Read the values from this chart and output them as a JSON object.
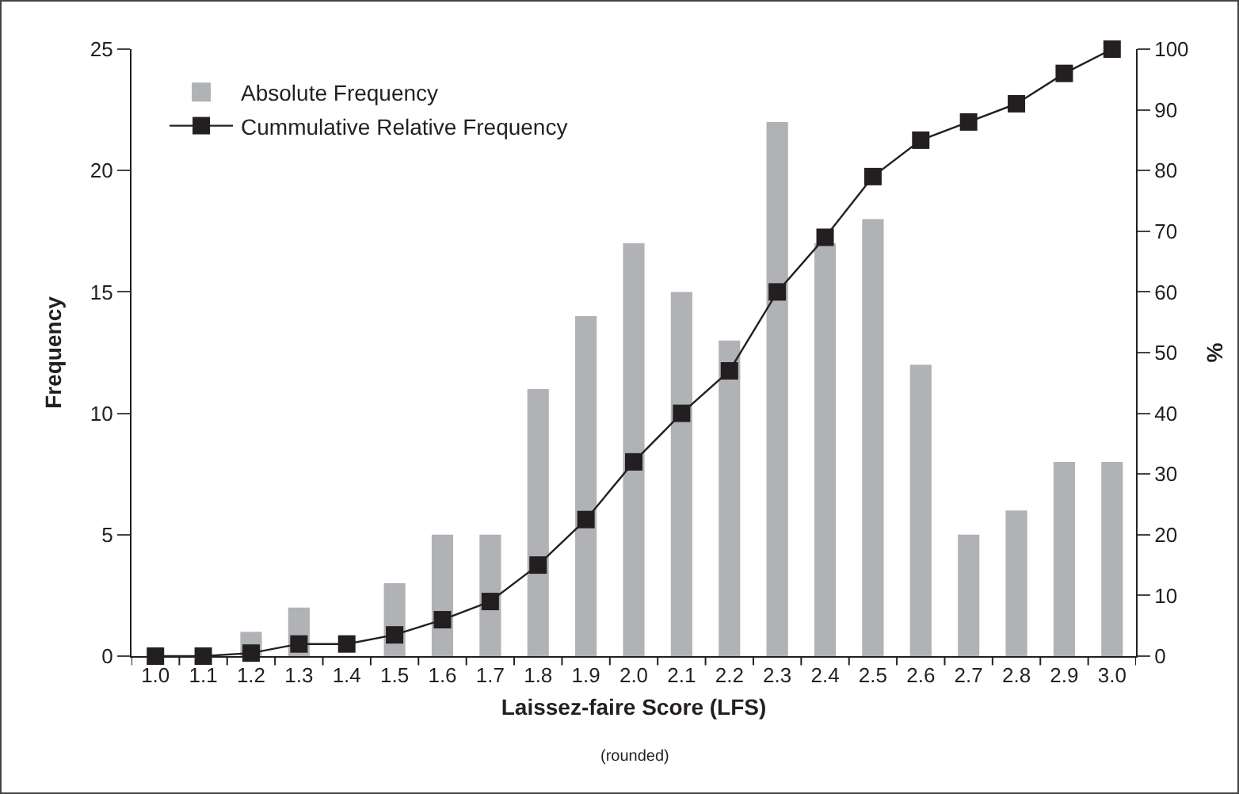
{
  "chart_data": {
    "type": "bar",
    "xlabel": "Laissez-faire Score (LFS)",
    "ylabel": "Frequency",
    "y2label": "%",
    "annotations": [
      "(rounded)"
    ],
    "categories": [
      "1.0",
      "1.1",
      "1.2",
      "1.3",
      "1.4",
      "1.5",
      "1.6",
      "1.7",
      "1.8",
      "1.9",
      "2.0",
      "2.1",
      "2.2",
      "2.3",
      "2.4",
      "2.5",
      "2.6",
      "2.7",
      "2.8",
      "2.9",
      "3.0"
    ],
    "series": [
      {
        "name": "Absolute Frequency",
        "type": "bar",
        "color": "#b1b2b6",
        "values": [
          0,
          0,
          1,
          2,
          0,
          3,
          5,
          5,
          11,
          14,
          17,
          15,
          13,
          22,
          17,
          18,
          12,
          5,
          6,
          8,
          8
        ]
      },
      {
        "name": "Cummulative Relative Frequency",
        "type": "line",
        "axis": "y2",
        "color": "#231f20",
        "marker": "square",
        "values": [
          0,
          0,
          0.5,
          2,
          2,
          3.5,
          6,
          9,
          15,
          22.5,
          32,
          40,
          47,
          60,
          69,
          79,
          85,
          88,
          91,
          96,
          100
        ]
      }
    ],
    "ylim": [
      0,
      25
    ],
    "yticks": [
      0,
      5,
      10,
      15,
      20,
      25
    ],
    "y2lim": [
      0,
      100
    ],
    "y2ticks": [
      0,
      10,
      20,
      30,
      40,
      50,
      60,
      70,
      80,
      90,
      100
    ],
    "grid": false,
    "legend": "top left"
  }
}
